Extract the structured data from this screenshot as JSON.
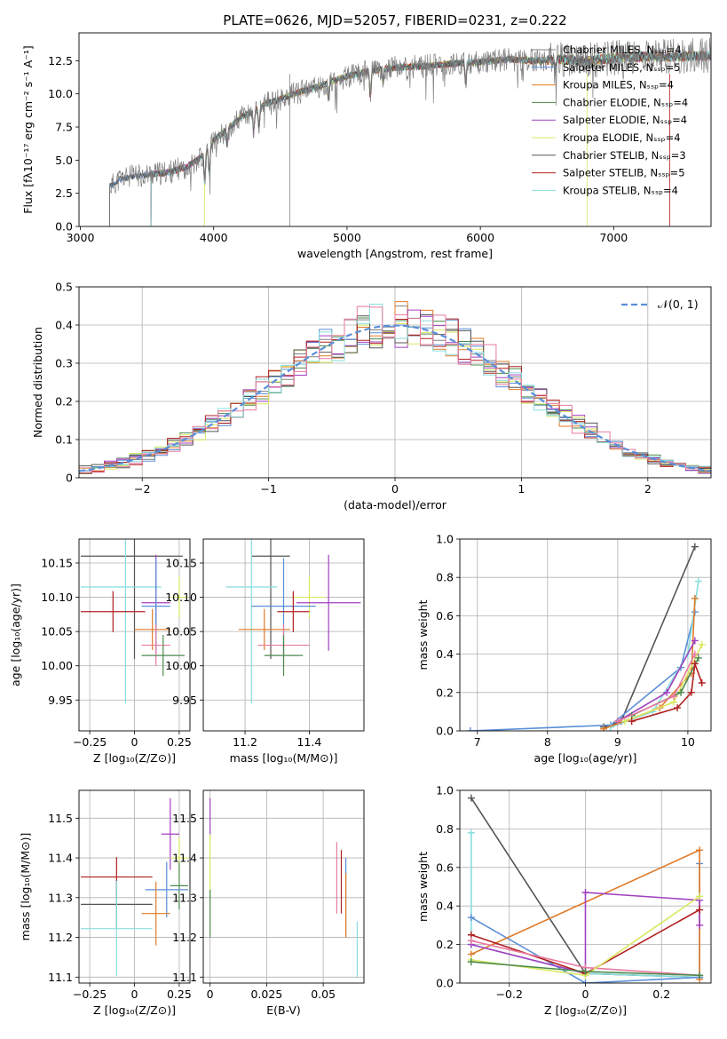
{
  "chart_data": [
    {
      "id": "spectrum",
      "type": "line",
      "title": "PLATE=0626, MJD=52057, FIBERID=0231, z=0.222",
      "xlabel": "wavelength [Angstrom, rest frame]",
      "ylabel": "Flux [fλ10⁻¹⁷ erg cm⁻² s⁻¹ A⁻¹]",
      "xlim": [
        2990,
        7730
      ],
      "ylim": [
        0,
        14.6
      ],
      "xticks": [
        3000,
        4000,
        5000,
        6000,
        7000
      ],
      "yticks": [
        0.0,
        2.5,
        5.0,
        7.5,
        10.0,
        12.5
      ],
      "legend_position": "upper right",
      "grid": false,
      "continuum": {
        "x": [
          3220,
          3300,
          3400,
          3500,
          3600,
          3700,
          3800,
          3900,
          3950,
          4000,
          4100,
          4200,
          4300,
          4400,
          4500,
          4600,
          4700,
          4800,
          4900,
          5000,
          5200,
          5400,
          5600,
          5800,
          6000,
          6200,
          6400,
          6600,
          6800,
          7000,
          7200,
          7400,
          7730
        ],
        "y": [
          3.0,
          3.6,
          3.8,
          3.9,
          4.0,
          4.2,
          4.5,
          5.2,
          5.7,
          6.5,
          7.3,
          8.2,
          8.7,
          9.3,
          9.6,
          10.0,
          10.3,
          10.6,
          11.0,
          11.3,
          11.8,
          12.0,
          12.1,
          12.3,
          12.4,
          12.6,
          12.5,
          12.6,
          12.5,
          12.7,
          12.8,
          12.8,
          12.9
        ]
      },
      "series": [
        {
          "name": "Chabrier MILES, Nₛₛₚ=4",
          "color": "#808080"
        },
        {
          "name": "Salpeter MILES, Nₛₛₚ=5",
          "color": "#5a8fd8"
        },
        {
          "name": "Kroupa MILES, Nₛₛₚ=4",
          "color": "#e07b2a"
        },
        {
          "name": "Chabrier ELODIE, Nₛₛₚ=4",
          "color": "#4d8a4d"
        },
        {
          "name": "Salpeter ELODIE, Nₛₛₚ=4",
          "color": "#a040c0"
        },
        {
          "name": "Kroupa ELODIE, Nₛₛₚ=4",
          "color": "#d8e860"
        },
        {
          "name": "Chabrier STELIB, Nₛₛₚ=3",
          "color": "#555555"
        },
        {
          "name": "Salpeter STELIB, Nₛₛₚ=5",
          "color": "#b22020"
        },
        {
          "name": "Kroupa STELIB, Nₛₛₚ=4",
          "color": "#88dddd"
        }
      ]
    },
    {
      "id": "residuals",
      "type": "histogram",
      "xlabel": "(data-model)/error",
      "ylabel": "Normed distribution",
      "xlim": [
        -2.5,
        2.5
      ],
      "ylim": [
        0,
        0.5
      ],
      "xticks": [
        -2,
        -1,
        0,
        1,
        2
      ],
      "yticks": [
        0.0,
        0.1,
        0.2,
        0.3,
        0.4,
        0.5
      ],
      "grid": true,
      "legend_position": "upper right",
      "reference": {
        "name": "𝒩(0, 1)",
        "color": "#5a8fd8",
        "dash": true
      },
      "bin_width": 0.1
    },
    {
      "id": "age_vs_Z",
      "type": "errorbar",
      "xlabel": "Z [log₁₀(Z/Z⊙)]",
      "ylabel": "age  [log₁₀(age/yr)]",
      "xlim": [
        -0.31,
        0.31
      ],
      "ylim": [
        9.905,
        10.185
      ],
      "xticks": [
        -0.25,
        0.0,
        0.25
      ],
      "yticks": [
        9.95,
        10.0,
        10.05,
        10.1,
        10.15
      ],
      "grid": true,
      "points": [
        {
          "color": "#555555",
          "x": 0.0,
          "xerr": [
            0.3,
            0.27
          ],
          "y": 10.16,
          "yerr": [
            0.15,
            0.15
          ]
        },
        {
          "color": "#88dddd",
          "x": -0.05,
          "xerr": [
            0.25,
            0.2
          ],
          "y": 10.115,
          "yerr": [
            0.17,
            0.17
          ]
        },
        {
          "color": "#d8e860",
          "x": 0.25,
          "xerr": [
            0.05,
            0.05
          ],
          "y": 10.1,
          "yerr": [
            0.03,
            0.03
          ]
        },
        {
          "color": "#a040c0",
          "x": 0.12,
          "xerr": [
            0.08,
            0.08
          ],
          "y": 10.092,
          "yerr": [
            0.07,
            0.07
          ]
        },
        {
          "color": "#5a8fd8",
          "x": 0.12,
          "xerr": [
            0.08,
            0.08
          ],
          "y": 10.087,
          "yerr": [
            0.07,
            0.07
          ]
        },
        {
          "color": "#b22020",
          "x": -0.12,
          "xerr": [
            0.18,
            0.18
          ],
          "y": 10.079,
          "yerr": [
            0.03,
            0.03
          ]
        },
        {
          "color": "#e07b2a",
          "x": 0.1,
          "xerr": [
            0.1,
            0.1
          ],
          "y": 10.053,
          "yerr": [
            0.03,
            0.03
          ]
        },
        {
          "color": "#e87aa0",
          "x": 0.12,
          "xerr": [
            0.08,
            0.08
          ],
          "y": 10.03,
          "yerr": [
            0.03,
            0.03
          ]
        },
        {
          "color": "#4d8a4d",
          "x": 0.16,
          "xerr": [
            0.12,
            0.12
          ],
          "y": 10.015,
          "yerr": [
            0.03,
            0.03
          ]
        }
      ]
    },
    {
      "id": "age_vs_mass",
      "type": "errorbar",
      "xlabel": "mass [log₁₀(M/M⊙)]",
      "xlim": [
        11.07,
        11.57
      ],
      "ylim": [
        9.905,
        10.185
      ],
      "xticks": [
        11.2,
        11.4
      ],
      "yticks": [
        9.95,
        10.0,
        10.05,
        10.1,
        10.15
      ],
      "grid": true,
      "points": [
        {
          "color": "#555555",
          "x": 11.28,
          "xerr": [
            0.06,
            0.06
          ],
          "y": 10.16,
          "yerr": [
            0.15,
            0.15
          ]
        },
        {
          "color": "#88dddd",
          "x": 11.22,
          "xerr": [
            0.08,
            0.08
          ],
          "y": 10.115,
          "yerr": [
            0.17,
            0.17
          ]
        },
        {
          "color": "#d8e860",
          "x": 11.4,
          "xerr": [
            0.05,
            0.05
          ],
          "y": 10.1,
          "yerr": [
            0.03,
            0.03
          ]
        },
        {
          "color": "#a040c0",
          "x": 11.46,
          "xerr": [
            0.1,
            0.1
          ],
          "y": 10.092,
          "yerr": [
            0.07,
            0.07
          ]
        },
        {
          "color": "#5a8fd8",
          "x": 11.32,
          "xerr": [
            0.1,
            0.1
          ],
          "y": 10.087,
          "yerr": [
            0.07,
            0.07
          ]
        },
        {
          "color": "#b22020",
          "x": 11.35,
          "xerr": [
            0.05,
            0.05
          ],
          "y": 10.079,
          "yerr": [
            0.03,
            0.03
          ]
        },
        {
          "color": "#e07b2a",
          "x": 11.26,
          "xerr": [
            0.08,
            0.08
          ],
          "y": 10.053,
          "yerr": [
            0.03,
            0.03
          ]
        },
        {
          "color": "#e87aa0",
          "x": 11.32,
          "xerr": [
            0.08,
            0.08
          ],
          "y": 10.03,
          "yerr": [
            0.03,
            0.03
          ]
        },
        {
          "color": "#4d8a4d",
          "x": 11.32,
          "xerr": [
            0.06,
            0.06
          ],
          "y": 10.015,
          "yerr": [
            0.03,
            0.03
          ]
        }
      ]
    },
    {
      "id": "weight_vs_age",
      "type": "line",
      "xlabel": "age  [log₁₀(age/yr)]",
      "ylabel": "mass weight",
      "xlim": [
        6.75,
        10.33
      ],
      "ylim": [
        0,
        1.0
      ],
      "xticks": [
        7,
        8,
        9,
        10
      ],
      "yticks": [
        0.0,
        0.2,
        0.4,
        0.6,
        0.8,
        1.0
      ],
      "grid": true,
      "series": [
        {
          "color": "#555555",
          "x": [
            8.8,
            9.05,
            10.1
          ],
          "y": [
            0.02,
            0.05,
            0.96
          ]
        },
        {
          "color": "#5a8fd8",
          "x": [
            6.9,
            8.9,
            9.9,
            10.1
          ],
          "y": [
            0.0,
            0.03,
            0.33,
            0.62
          ]
        },
        {
          "color": "#88dddd",
          "x": [
            8.9,
            9.5,
            10.0,
            10.15
          ],
          "y": [
            0.02,
            0.1,
            0.4,
            0.78
          ]
        },
        {
          "color": "#e07b2a",
          "x": [
            8.8,
            9.6,
            10.05,
            10.1
          ],
          "y": [
            0.01,
            0.12,
            0.3,
            0.69
          ]
        },
        {
          "color": "#a040c0",
          "x": [
            9.0,
            9.7,
            10.1
          ],
          "y": [
            0.05,
            0.2,
            0.47
          ]
        },
        {
          "color": "#d8e860",
          "x": [
            9.1,
            9.8,
            10.2
          ],
          "y": [
            0.05,
            0.15,
            0.45
          ]
        },
        {
          "color": "#4d8a4d",
          "x": [
            9.2,
            9.9,
            10.15
          ],
          "y": [
            0.08,
            0.2,
            0.38
          ]
        },
        {
          "color": "#e87aa0",
          "x": [
            9.0,
            9.8,
            10.1
          ],
          "y": [
            0.05,
            0.18,
            0.4
          ]
        },
        {
          "color": "#b22020",
          "x": [
            9.2,
            9.85,
            10.05,
            10.1,
            10.2
          ],
          "y": [
            0.05,
            0.12,
            0.2,
            0.35,
            0.25
          ]
        }
      ]
    },
    {
      "id": "mass_vs_Z",
      "type": "errorbar",
      "xlabel": "Z [log₁₀(Z/Z⊙)]",
      "ylabel": "mass [log₁₀(M/M⊙)]",
      "xlim": [
        -0.31,
        0.31
      ],
      "ylim": [
        11.085,
        11.57
      ],
      "xticks": [
        -0.25,
        0.0,
        0.25
      ],
      "yticks": [
        11.1,
        11.2,
        11.3,
        11.4,
        11.5
      ],
      "grid": true,
      "points": [
        {
          "color": "#a040c0",
          "x": 0.2,
          "xerr": [
            0.05,
            0.05
          ],
          "y": 11.46,
          "yerr": [
            0.09,
            0.09
          ]
        },
        {
          "color": "#d8e860",
          "x": 0.25,
          "xerr": [
            0.05,
            0.05
          ],
          "y": 11.4,
          "yerr": [
            0.05,
            0.05
          ]
        },
        {
          "color": "#b22020",
          "x": -0.1,
          "xerr": [
            0.2,
            0.2
          ],
          "y": 11.352,
          "yerr": [
            0.05,
            0.05
          ]
        },
        {
          "color": "#4d8a4d",
          "x": 0.25,
          "xerr": [
            0.05,
            0.05
          ],
          "y": 11.33,
          "yerr": [
            0.06,
            0.06
          ]
        },
        {
          "color": "#5a8fd8",
          "x": 0.18,
          "xerr": [
            0.12,
            0.12
          ],
          "y": 11.32,
          "yerr": [
            0.07,
            0.07
          ]
        },
        {
          "color": "#555555",
          "x": -0.1,
          "xerr": [
            0.2,
            0.2
          ],
          "y": 11.283,
          "yerr": [
            0.06,
            0.06
          ]
        },
        {
          "color": "#e07b2a",
          "x": 0.12,
          "xerr": [
            0.08,
            0.08
          ],
          "y": 11.26,
          "yerr": [
            0.08,
            0.08
          ]
        },
        {
          "color": "#88dddd",
          "x": -0.1,
          "xerr": [
            0.2,
            0.2
          ],
          "y": 11.222,
          "yerr": [
            0.12,
            0.12
          ]
        }
      ]
    },
    {
      "id": "mass_vs_ebv",
      "type": "errorbar",
      "xlabel": "E(B-V)",
      "xlim": [
        -0.003,
        0.068
      ],
      "ylim": [
        11.085,
        11.57
      ],
      "xticks": [
        0.0,
        0.025,
        0.05
      ],
      "yticks": [
        11.1,
        11.2,
        11.3,
        11.4,
        11.5
      ],
      "grid": true,
      "points": [
        {
          "color": "#a040c0",
          "x": 0.0,
          "xerr": [
            0,
            0
          ],
          "y": 11.5,
          "yerr": [
            0.05,
            0.05
          ]
        },
        {
          "color": "#d8e860",
          "x": 0.0,
          "xerr": [
            0,
            0
          ],
          "y": 11.38,
          "yerr": [
            0.08,
            0.08
          ]
        },
        {
          "color": "#4d8a4d",
          "x": 0.0,
          "xerr": [
            0,
            0
          ],
          "y": 11.26,
          "yerr": [
            0.06,
            0.06
          ]
        },
        {
          "color": "#e87aa0",
          "x": 0.056,
          "xerr": [
            0,
            0
          ],
          "y": 11.35,
          "yerr": [
            0.09,
            0.09
          ]
        },
        {
          "color": "#b22020",
          "x": 0.058,
          "xerr": [
            0,
            0
          ],
          "y": 11.34,
          "yerr": [
            0.08,
            0.08
          ]
        },
        {
          "color": "#5a8fd8",
          "x": 0.06,
          "xerr": [
            0,
            0
          ],
          "y": 11.3,
          "yerr": [
            0.1,
            0.1
          ]
        },
        {
          "color": "#e07b2a",
          "x": 0.06,
          "xerr": [
            0,
            0
          ],
          "y": 11.28,
          "yerr": [
            0.08,
            0.08
          ]
        },
        {
          "color": "#88dddd",
          "x": 0.065,
          "xerr": [
            0,
            0
          ],
          "y": 11.17,
          "yerr": [
            0.07,
            0.07
          ]
        }
      ]
    },
    {
      "id": "weight_vs_Z",
      "type": "line",
      "xlabel": "Z [log₁₀(Z/Z⊙)]",
      "ylabel": "mass weight",
      "xlim": [
        -0.33,
        0.33
      ],
      "ylim": [
        0,
        1.0
      ],
      "xticks": [
        -0.2,
        0.0,
        0.2
      ],
      "yticks": [
        0.0,
        0.2,
        0.4,
        0.6,
        0.8,
        1.0
      ],
      "grid": true,
      "series": [
        {
          "color": "#555555",
          "x": [
            -0.3,
            0.0,
            0.3
          ],
          "y": [
            0.96,
            0.05,
            0.03
          ]
        },
        {
          "color": "#88dddd",
          "x": [
            -0.3,
            -0.3,
            0.0,
            0.3
          ],
          "y": [
            0.78,
            0.2,
            0.05,
            0.03
          ]
        },
        {
          "color": "#5a8fd8",
          "x": [
            -0.3,
            0.0,
            0.3,
            0.3
          ],
          "y": [
            0.34,
            0.0,
            0.03,
            0.62
          ]
        },
        {
          "color": "#e07b2a",
          "x": [
            -0.3,
            0.3,
            0.3
          ],
          "y": [
            0.15,
            0.69,
            0.02
          ]
        },
        {
          "color": "#a040c0",
          "x": [
            -0.3,
            0.0,
            0.0,
            0.3,
            0.3
          ],
          "y": [
            0.2,
            0.05,
            0.47,
            0.43,
            0.3
          ]
        },
        {
          "color": "#b22020",
          "x": [
            -0.3,
            0.0,
            0.3
          ],
          "y": [
            0.25,
            0.05,
            0.38
          ]
        },
        {
          "color": "#e87aa0",
          "x": [
            -0.3,
            0.0,
            0.3
          ],
          "y": [
            0.22,
            0.08,
            0.04
          ]
        },
        {
          "color": "#d8e860",
          "x": [
            -0.3,
            0.0,
            0.3
          ],
          "y": [
            0.12,
            0.04,
            0.45
          ]
        },
        {
          "color": "#4d8a4d",
          "x": [
            -0.3,
            0.0,
            0.3
          ],
          "y": [
            0.11,
            0.06,
            0.04
          ]
        }
      ]
    }
  ]
}
